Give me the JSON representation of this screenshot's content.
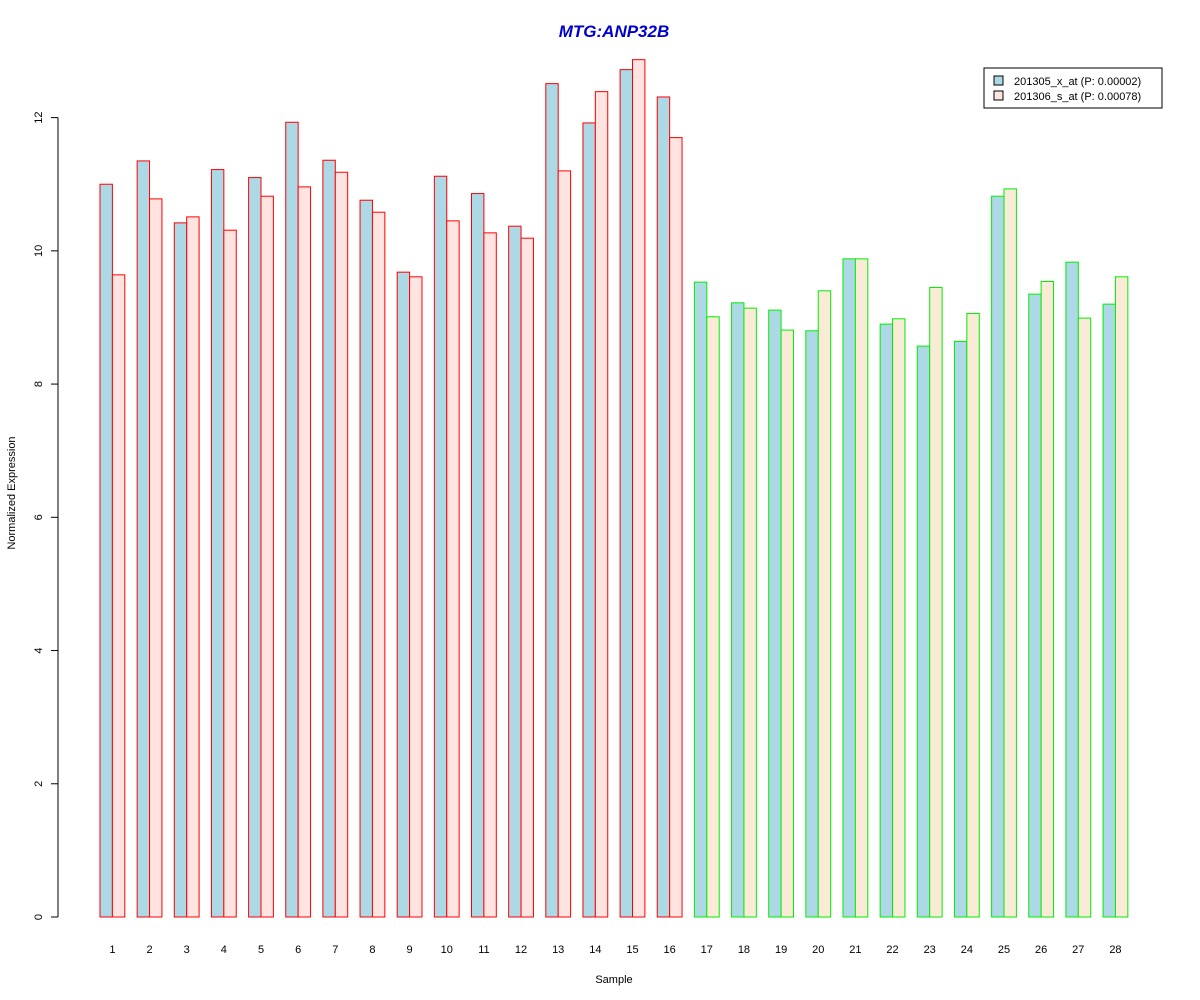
{
  "chart_data": {
    "type": "bar",
    "title": "MTG:ANP32B",
    "xlabel": "Sample",
    "ylabel": "Normalized Expression",
    "ylim": [
      0,
      13.0
    ],
    "yticks": [
      0,
      2,
      4,
      6,
      8,
      10,
      12
    ],
    "categories": [
      "1",
      "2",
      "3",
      "4",
      "5",
      "6",
      "7",
      "8",
      "9",
      "10",
      "11",
      "12",
      "13",
      "14",
      "15",
      "16",
      "17",
      "18",
      "19",
      "20",
      "21",
      "22",
      "23",
      "24",
      "25",
      "26",
      "27",
      "28"
    ],
    "series": [
      {
        "name": "201305_x_at (P: 0.00002)",
        "fill": "#add8e6",
        "values": [
          11.0,
          11.35,
          10.42,
          11.22,
          11.1,
          11.93,
          11.36,
          10.76,
          9.68,
          11.12,
          10.86,
          10.37,
          12.51,
          11.92,
          12.72,
          12.31,
          9.53,
          9.22,
          9.11,
          8.8,
          9.88,
          8.9,
          8.57,
          8.64,
          10.82,
          9.35,
          9.83,
          9.2
        ]
      },
      {
        "name": "201306_s_at (P: 0.00078)",
        "fill_group1": "#ffe4e1",
        "fill_group2": "#faebd7",
        "values": [
          9.64,
          10.78,
          10.51,
          10.31,
          10.82,
          10.96,
          11.18,
          10.58,
          9.61,
          10.45,
          10.27,
          10.19,
          11.2,
          12.39,
          12.87,
          11.7,
          9.01,
          9.14,
          8.81,
          9.4,
          9.88,
          8.98,
          9.45,
          9.06,
          10.93,
          9.54,
          8.99,
          9.61
        ]
      }
    ],
    "group_border_colors": {
      "group1": "#ff0000",
      "group2": "#00ee00"
    },
    "group1_count": 16,
    "title_color": "#0000cd",
    "legend_position": "top-right",
    "grid": false
  }
}
